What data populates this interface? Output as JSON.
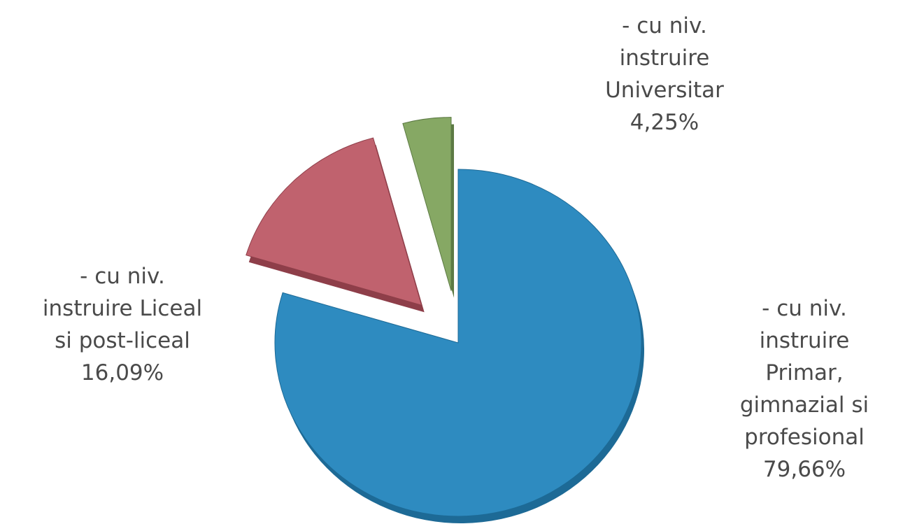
{
  "chart_data": {
    "type": "pie",
    "style": "3d-exploded",
    "title": "",
    "slices": [
      {
        "label_lines": [
          "- cu niv.",
          "instruire",
          "Primar,",
          "gimnazial si",
          "profesional",
          "79,66%"
        ],
        "value": 79.66,
        "value_text": "79,66%",
        "color": "#2E8BC0",
        "side_color": "#1D6A96",
        "exploded": false
      },
      {
        "label_lines": [
          "- cu niv.",
          "instruire Liceal",
          "si post-liceal",
          "16,09%"
        ],
        "value": 16.09,
        "value_text": "16,09%",
        "color": "#C0626E",
        "side_color": "#8E3E49",
        "exploded": true
      },
      {
        "label_lines": [
          "- cu niv.",
          "instruire",
          "Universitar",
          "4,25%"
        ],
        "value": 4.25,
        "value_text": "4,25%",
        "color": "#86A864",
        "side_color": "#5C7A44",
        "exploded": true
      }
    ]
  }
}
